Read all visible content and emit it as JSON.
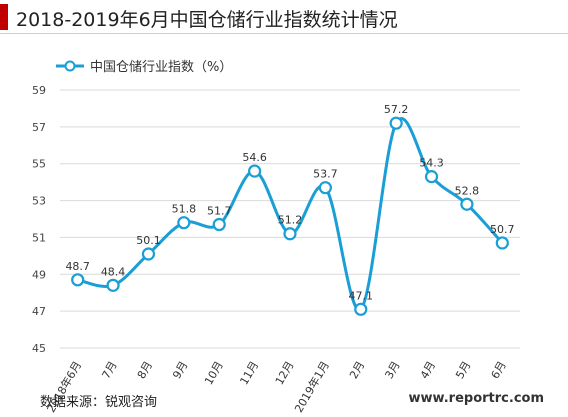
{
  "header": {
    "title": "2018-2019年6月中国仓储行业指数统计情况"
  },
  "footer": {
    "source": "数据来源：锐观咨询",
    "website": "www.reportrc.com"
  },
  "colors": {
    "accent": "#c00000",
    "series": "#1a9ed6",
    "marker_fill": "#ffffff",
    "grid": "#d9d9d9"
  },
  "chart_data": {
    "type": "line",
    "title": "",
    "legend": {
      "position": "top-left"
    },
    "categories": [
      "2018年6月",
      "7月",
      "8月",
      "9月",
      "10月",
      "11月",
      "12月",
      "2019年1月",
      "2月",
      "3月",
      "4月",
      "5月",
      "6月"
    ],
    "series": [
      {
        "name": "中国仓储行业指数（%）",
        "values": [
          48.7,
          48.4,
          50.1,
          51.8,
          51.7,
          54.6,
          51.2,
          53.7,
          47.1,
          57.2,
          54.3,
          52.8,
          50.7
        ]
      }
    ],
    "ylim": [
      45,
      59
    ],
    "yticks": [
      45,
      47,
      49,
      51,
      53,
      55,
      57,
      59
    ],
    "grid": true,
    "xlabel": "",
    "ylabel": ""
  }
}
